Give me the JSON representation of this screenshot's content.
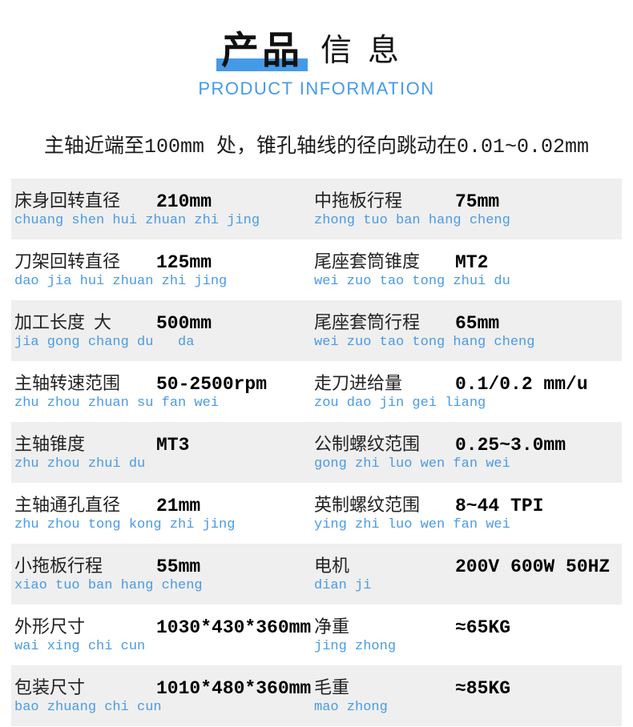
{
  "header": {
    "title_highlight": "产品",
    "title_rest": "信息",
    "subtitle_en": "PRODUCT INFORMATION"
  },
  "intro": "主轴近端至100mm 处，锥孔轴线的径向跳动在0.01~0.02mm",
  "spec_table": {
    "rows": [
      {
        "left": {
          "label": "床身回转直径",
          "value": "210mm",
          "pinyin": "chuang shen hui zhuan zhi jing"
        },
        "right": {
          "label": "中拖板行程",
          "value": "75mm",
          "pinyin": "zhong tuo ban hang cheng"
        }
      },
      {
        "left": {
          "label": "刀架回转直径",
          "value": "125mm",
          "pinyin": "dao jia hui zhuan zhi jing"
        },
        "right": {
          "label": "尾座套筒锥度",
          "value": "MT2",
          "pinyin": "wei zuo tao tong zhui du"
        }
      },
      {
        "left": {
          "label": "加工长度  大",
          "value": "500mm",
          "pinyin": "jia gong chang du   da"
        },
        "right": {
          "label": "尾座套筒行程",
          "value": "65mm",
          "pinyin": "wei zuo tao tong hang cheng"
        }
      },
      {
        "left": {
          "label": "主轴转速范围",
          "value": "50-2500rpm",
          "pinyin": "zhu zhou zhuan su fan wei"
        },
        "right": {
          "label": "走刀进给量",
          "value": "0.1/0.2 mm/u",
          "pinyin": "zou dao jin gei liang"
        }
      },
      {
        "left": {
          "label": "主轴锥度",
          "value": "MT3",
          "pinyin": "zhu zhou zhui du"
        },
        "right": {
          "label": "公制螺纹范围",
          "value": "0.25~3.0mm",
          "pinyin": "gong zhi luo wen fan wei"
        }
      },
      {
        "left": {
          "label": "主轴通孔直径",
          "value": "21mm",
          "pinyin": "zhu zhou tong kong zhi jing"
        },
        "right": {
          "label": "英制螺纹范围",
          "value": "8~44 TPI",
          "pinyin": "ying zhi luo wen fan wei"
        }
      },
      {
        "left": {
          "label": "小拖板行程",
          "value": "55mm",
          "pinyin": "xiao tuo ban hang cheng"
        },
        "right": {
          "label": "电机",
          "value": "200V 600W 50HZ",
          "pinyin": "dian ji"
        }
      },
      {
        "left": {
          "label": "外形尺寸",
          "value": "1030*430*360mm",
          "pinyin": "wai xing chi cun"
        },
        "right": {
          "label": "净重",
          "value": "≈65KG",
          "pinyin": "jing zhong"
        }
      },
      {
        "left": {
          "label": "包装尺寸",
          "value": "1010*480*360mm",
          "pinyin": "bao zhuang chi cun"
        },
        "right": {
          "label": "毛重",
          "value": "≈85KG",
          "pinyin": "mao zhong"
        }
      }
    ]
  },
  "colors": {
    "accent": "#459ae8",
    "pinyin_blue": "#4a9be4",
    "row_alt_bg": "#efefef"
  }
}
